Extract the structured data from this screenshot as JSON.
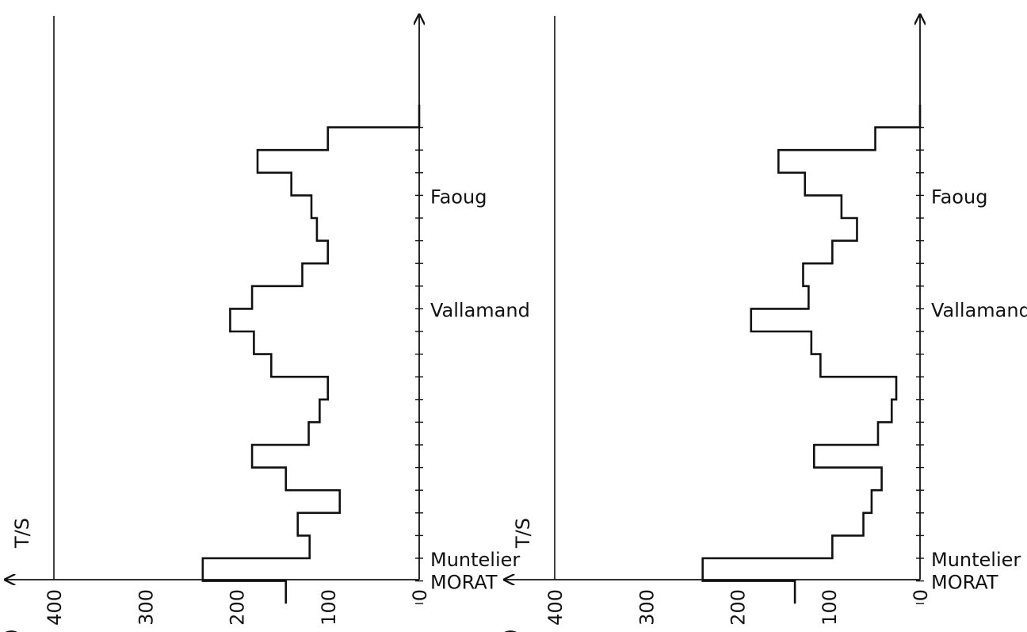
{
  "chart_data": [
    {
      "type": "line",
      "panel_label": "a)",
      "ylabel": "T/S",
      "xlim": [
        0,
        400
      ],
      "xticks": [
        "0",
        "100",
        "200",
        "300",
        "400"
      ],
      "segments": 22,
      "places": [
        {
          "name": "Faoug",
          "segment": 4
        },
        {
          "name": "Vallamand",
          "segment": 9
        },
        {
          "name": "Muntelier",
          "segment": 20
        },
        {
          "name": "MORAT",
          "segment": 21
        }
      ],
      "values": [
        0,
        100,
        177,
        140,
        118,
        112,
        100,
        128,
        183,
        207,
        181,
        162,
        100,
        109,
        121,
        183,
        146,
        87,
        133,
        120,
        237,
        146
      ],
      "grid": false
    },
    {
      "type": "line",
      "panel_label": "b)",
      "ylabel": "T/S",
      "xlim": [
        0,
        400
      ],
      "xticks": [
        "0",
        "100",
        "200",
        "300",
        "400"
      ],
      "segments": 22,
      "places": [
        {
          "name": "Faoug",
          "segment": 4
        },
        {
          "name": "Vallamand",
          "segment": 9
        },
        {
          "name": "Muntelier",
          "segment": 20
        },
        {
          "name": "MORAT",
          "segment": 21
        }
      ],
      "values": [
        0,
        49,
        155,
        126,
        86,
        69,
        96,
        128,
        122,
        185,
        119,
        109,
        26,
        31,
        46,
        116,
        42,
        53,
        62,
        96,
        238,
        137
      ],
      "grid": false
    }
  ]
}
